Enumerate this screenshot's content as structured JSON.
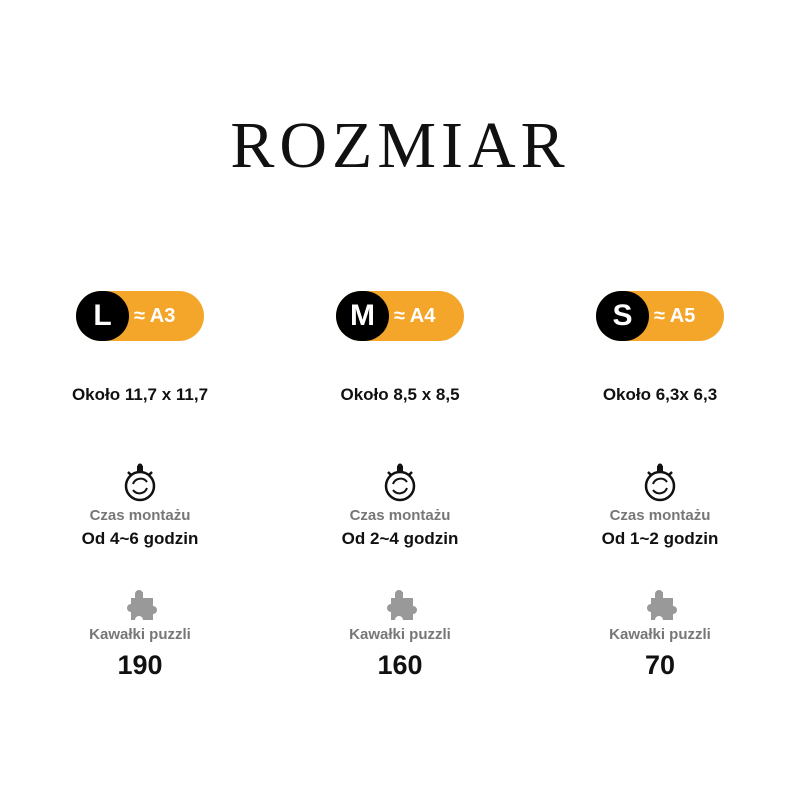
{
  "title": "ROZMIAR",
  "colors": {
    "accent": "#F4A62A",
    "dark": "#000000",
    "muted": "#777777"
  },
  "columns": [
    {
      "letter": "L",
      "paper": "≈ A3",
      "size": "Około 11,7 x 11,7",
      "time_label": "Czas montażu",
      "time": "Od 4~6 godzin",
      "pieces_label": "Kawałki puzzli",
      "pieces": "190"
    },
    {
      "letter": "M",
      "paper": "≈ A4",
      "size": "Około 8,5 x 8,5",
      "time_label": "Czas montażu",
      "time": "Od 2~4 godzin",
      "pieces_label": "Kawałki puzzli",
      "pieces": "160"
    },
    {
      "letter": "S",
      "paper": "≈ A5",
      "size": "Około 6,3x 6,3",
      "time_label": "Czas montażu",
      "time": "Od 1~2 godzin",
      "pieces_label": "Kawałki puzzli",
      "pieces": "70"
    }
  ]
}
